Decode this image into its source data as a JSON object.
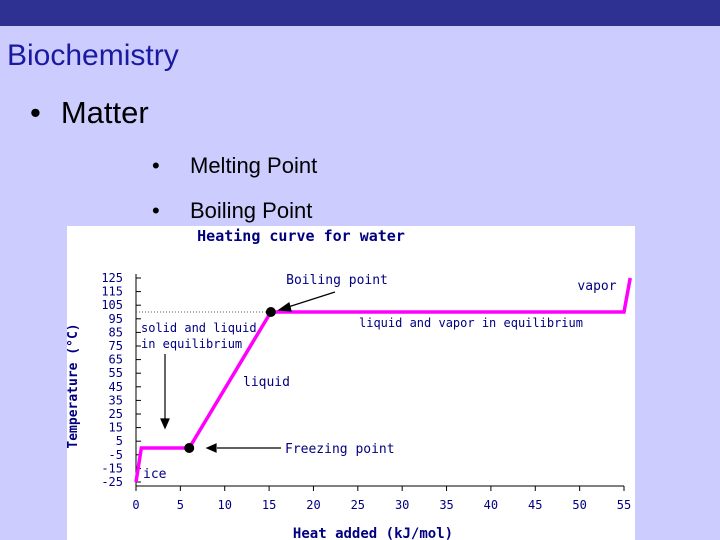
{
  "slide": {
    "title": "Biochemistry",
    "bullets": [
      {
        "bullet": "•",
        "text": "Matter"
      },
      {
        "bullet": "•",
        "text": "Melting Point"
      },
      {
        "bullet": "•",
        "text": "Boiling Point"
      }
    ]
  },
  "colors": {
    "topbar": "#2e3192",
    "background": "#ccccff",
    "title": "#1a1aa0",
    "curve": "#ff00ff",
    "chart_text": "#000080"
  },
  "chart_data": {
    "type": "line",
    "title": "Heating curve for water",
    "xlabel": "Heat added (kJ/mol)",
    "ylabel": "Temperature (°C)",
    "xlim": [
      0,
      55
    ],
    "ylim": [
      -25,
      125
    ],
    "x_ticks": [
      0,
      5,
      10,
      15,
      20,
      25,
      30,
      35,
      40,
      45,
      50,
      55
    ],
    "y_ticks": [
      125,
      115,
      105,
      95,
      85,
      75,
      65,
      55,
      45,
      35,
      25,
      15,
      5,
      -5,
      -15,
      -25
    ],
    "series": [
      {
        "x": [
          0,
          0.6,
          6,
          15.2,
          55,
          55.7
        ],
        "y": [
          -25,
          0,
          0,
          100,
          100,
          125
        ]
      }
    ],
    "points": [
      {
        "x": 6,
        "y": 0
      },
      {
        "x": 15.2,
        "y": 100
      }
    ],
    "reference_line_y": 100,
    "annotations": [
      {
        "text": "Boiling point"
      },
      {
        "text": "vapor"
      },
      {
        "text": "solid and liquid",
        "text2": "in equilibrium"
      },
      {
        "text": "liquid and vapor in equilibrium"
      },
      {
        "text": "liquid"
      },
      {
        "text": "Freezing point"
      },
      {
        "text": "ice"
      }
    ]
  }
}
